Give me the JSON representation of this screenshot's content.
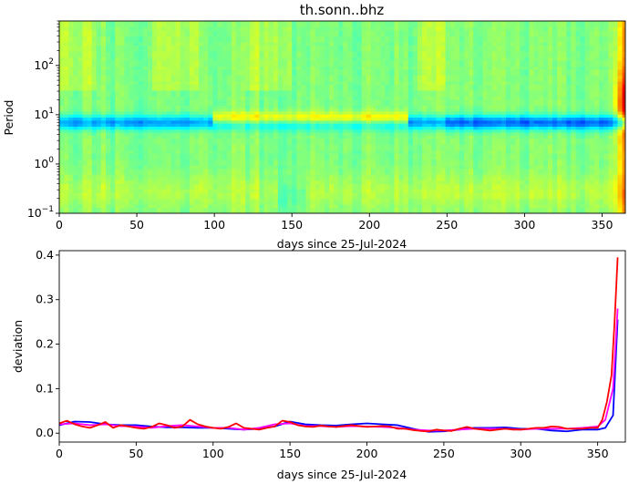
{
  "chart_data": [
    {
      "type": "heatmap",
      "title": "th.sonn..bhz",
      "xlabel": "days since 25-Jul-2024",
      "ylabel": "Period",
      "xlim": [
        0,
        365
      ],
      "ylim": [
        0.1,
        800
      ],
      "y_scale": "log",
      "x_ticks": [
        "0",
        "50",
        "100",
        "150",
        "200",
        "250",
        "300",
        "350"
      ],
      "y_ticks": [
        {
          "base": "10",
          "exp": "−1"
        },
        {
          "base": "10",
          "exp": "0"
        },
        {
          "base": "10",
          "exp": "1"
        },
        {
          "base": "10",
          "exp": "2"
        }
      ],
      "colormap": "jet"
    },
    {
      "type": "line",
      "xlabel": "days since 25-Jul-2024",
      "ylabel": "deviation",
      "xlim": [
        0,
        368
      ],
      "ylim": [
        -0.02,
        0.41
      ],
      "x_ticks": [
        "0",
        "50",
        "100",
        "150",
        "200",
        "250",
        "300",
        "350"
      ],
      "y_ticks": [
        "0.0",
        "0.1",
        "0.2",
        "0.3",
        "0.4"
      ],
      "series": [
        {
          "color": "#0000ff",
          "x": [
            0,
            10,
            20,
            30,
            40,
            50,
            60,
            70,
            80,
            90,
            100,
            110,
            120,
            130,
            140,
            150,
            160,
            170,
            180,
            190,
            200,
            210,
            220,
            230,
            240,
            250,
            260,
            270,
            280,
            290,
            300,
            310,
            320,
            330,
            340,
            350,
            355,
            360,
            363
          ],
          "y": [
            0.018,
            0.026,
            0.025,
            0.02,
            0.018,
            0.018,
            0.015,
            0.013,
            0.013,
            0.012,
            0.012,
            0.01,
            0.008,
            0.01,
            0.015,
            0.026,
            0.02,
            0.018,
            0.017,
            0.02,
            0.022,
            0.02,
            0.018,
            0.01,
            0.003,
            0.004,
            0.008,
            0.012,
            0.012,
            0.013,
            0.01,
            0.01,
            0.006,
            0.004,
            0.008,
            0.008,
            0.012,
            0.04,
            0.255
          ]
        },
        {
          "color": "#ff00ff",
          "x": [
            0,
            10,
            20,
            30,
            40,
            50,
            60,
            70,
            80,
            90,
            100,
            110,
            120,
            130,
            140,
            150,
            160,
            170,
            180,
            190,
            200,
            210,
            220,
            230,
            240,
            250,
            260,
            270,
            280,
            290,
            300,
            310,
            320,
            330,
            340,
            350,
            355,
            360,
            363
          ],
          "y": [
            0.02,
            0.022,
            0.018,
            0.02,
            0.016,
            0.015,
            0.012,
            0.016,
            0.018,
            0.015,
            0.012,
            0.012,
            0.008,
            0.012,
            0.02,
            0.022,
            0.016,
            0.016,
            0.014,
            0.016,
            0.015,
            0.014,
            0.012,
            0.008,
            0.006,
            0.006,
            0.008,
            0.01,
            0.01,
            0.01,
            0.008,
            0.01,
            0.01,
            0.01,
            0.012,
            0.015,
            0.03,
            0.1,
            0.28
          ]
        },
        {
          "color": "#ff0000",
          "x": [
            0,
            5,
            10,
            15,
            20,
            25,
            30,
            35,
            40,
            45,
            50,
            55,
            60,
            65,
            70,
            75,
            80,
            85,
            90,
            95,
            100,
            105,
            110,
            115,
            120,
            125,
            130,
            135,
            140,
            145,
            150,
            155,
            160,
            165,
            170,
            175,
            180,
            185,
            190,
            195,
            200,
            205,
            210,
            215,
            220,
            225,
            230,
            235,
            240,
            245,
            250,
            255,
            260,
            265,
            270,
            275,
            280,
            285,
            290,
            295,
            300,
            305,
            310,
            315,
            320,
            325,
            330,
            335,
            340,
            345,
            350,
            353,
            356,
            359,
            361,
            363
          ],
          "y": [
            0.022,
            0.028,
            0.02,
            0.015,
            0.012,
            0.018,
            0.025,
            0.012,
            0.018,
            0.015,
            0.012,
            0.01,
            0.014,
            0.022,
            0.018,
            0.012,
            0.015,
            0.03,
            0.02,
            0.015,
            0.012,
            0.01,
            0.014,
            0.022,
            0.012,
            0.01,
            0.008,
            0.012,
            0.015,
            0.028,
            0.025,
            0.018,
            0.015,
            0.014,
            0.017,
            0.015,
            0.014,
            0.016,
            0.018,
            0.016,
            0.014,
            0.015,
            0.016,
            0.015,
            0.01,
            0.01,
            0.007,
            0.005,
            0.004,
            0.008,
            0.006,
            0.005,
            0.01,
            0.014,
            0.01,
            0.008,
            0.006,
            0.008,
            0.01,
            0.008,
            0.008,
            0.01,
            0.012,
            0.012,
            0.015,
            0.014,
            0.01,
            0.01,
            0.01,
            0.012,
            0.012,
            0.03,
            0.07,
            0.13,
            0.25,
            0.395
          ]
        }
      ]
    }
  ]
}
